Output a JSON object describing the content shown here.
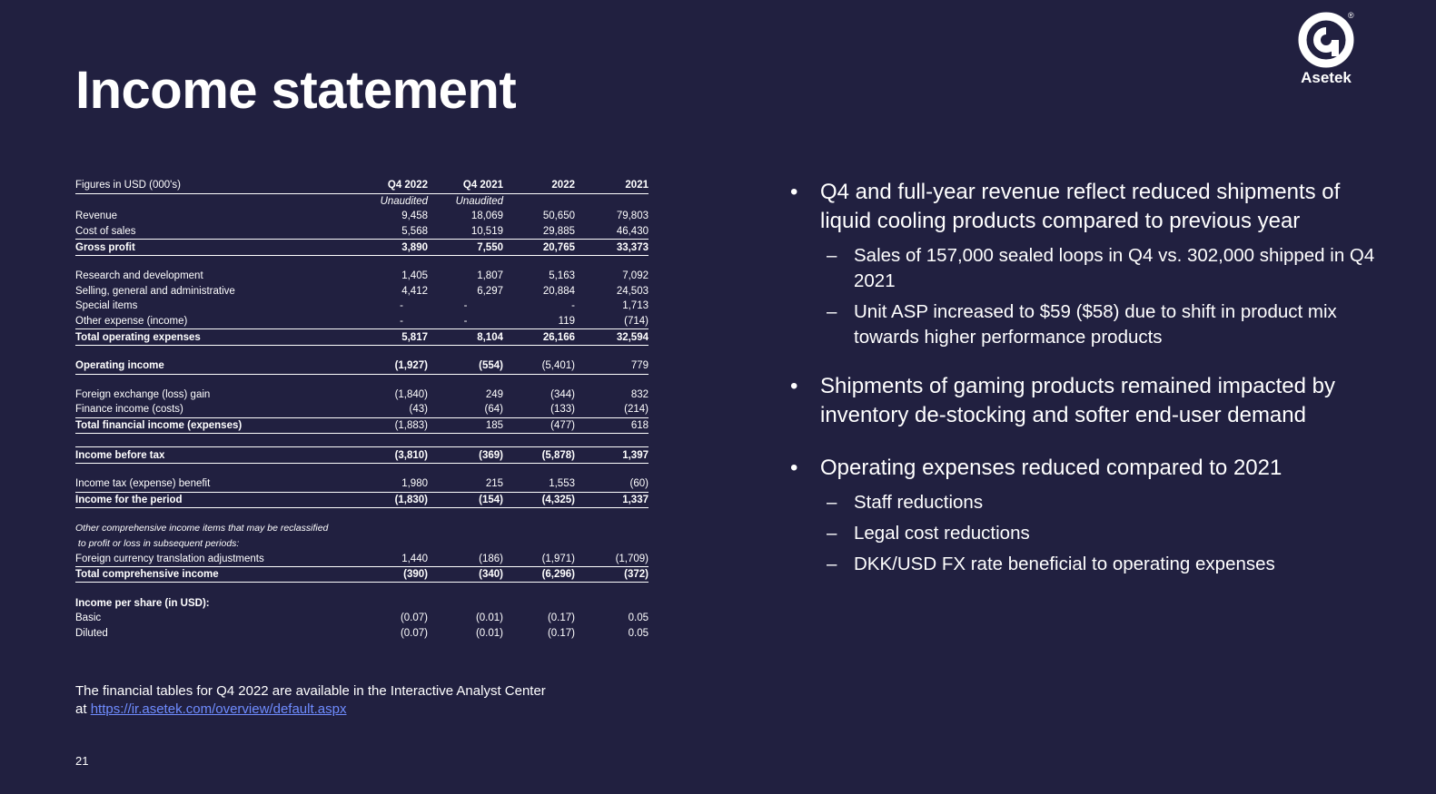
{
  "title": "Income statement",
  "logo": {
    "wordmark": "Asetek",
    "registered": "®"
  },
  "table": {
    "header": {
      "label": "Figures in USD (000's)",
      "cols": [
        "Q4 2022",
        "Q4 2021",
        "2022",
        "2021"
      ]
    },
    "subheader": [
      "Unaudited",
      "Unaudited"
    ],
    "rows": {
      "revenue": [
        "Revenue",
        "9,458",
        "18,069",
        "50,650",
        "79,803"
      ],
      "cost_of_sales": [
        "Cost of sales",
        "5,568",
        "10,519",
        "29,885",
        "46,430"
      ],
      "gross_profit": [
        "Gross profit",
        "3,890",
        "7,550",
        "20,765",
        "33,373"
      ],
      "rnd": [
        "Research and development",
        "1,405",
        "1,807",
        "5,163",
        "7,092"
      ],
      "sga": [
        "Selling, general and administrative",
        "4,412",
        "6,297",
        "20,884",
        "24,503"
      ],
      "special": [
        "Special items",
        "-",
        "-",
        "-",
        "1,713"
      ],
      "other_exp": [
        "Other expense (income)",
        "-",
        "-",
        "119",
        "(714)"
      ],
      "total_opex": [
        "Total operating expenses",
        "5,817",
        "8,104",
        "26,166",
        "32,594"
      ],
      "op_income": [
        "Operating income",
        "(1,927)",
        "(554)",
        "(5,401)",
        "779"
      ],
      "fx": [
        "Foreign exchange (loss) gain",
        "(1,840)",
        "249",
        "(344)",
        "832"
      ],
      "finance": [
        "Finance income (costs)",
        "(43)",
        "(64)",
        "(133)",
        "(214)"
      ],
      "total_fin": [
        "Total financial income (expenses)",
        "(1,883)",
        "185",
        "(477)",
        "618"
      ],
      "pre_tax": [
        "Income before tax",
        "(3,810)",
        "(369)",
        "(5,878)",
        "1,397"
      ],
      "tax": [
        "Income tax (expense) benefit",
        "1,980",
        "215",
        "1,553",
        "(60)"
      ],
      "period": [
        "Income for the period",
        "(1,830)",
        "(154)",
        "(4,325)",
        "1,337"
      ],
      "oci_note1": "Other comprehensive income items that may be reclassified",
      "oci_note2": " to profit or loss in subsequent periods:",
      "fx_translation": [
        "Foreign currency translation adjustments",
        "1,440",
        "(186)",
        "(1,971)",
        "(1,709)"
      ],
      "total_comp": [
        "Total comprehensive income",
        "(390)",
        "(340)",
        "(6,296)",
        "(372)"
      ],
      "eps_head": "Income per share (in USD):",
      "basic": [
        "Basic",
        "(0.07)",
        "(0.01)",
        "(0.17)",
        "0.05"
      ],
      "diluted": [
        "Diluted",
        "(0.07)",
        "(0.01)",
        "(0.17)",
        "0.05"
      ]
    }
  },
  "bullets": [
    {
      "text": "Q4 and full-year revenue reflect reduced shipments of liquid cooling products compared to previous year",
      "subs": [
        "Sales of 157,000 sealed loops in Q4 vs. 302,000 shipped in Q4 2021",
        "Unit ASP increased to $59 ($58) due to shift in product mix towards higher performance products"
      ]
    },
    {
      "text": "Shipments of gaming products remained impacted by inventory de-stocking and softer end-user demand",
      "subs": []
    },
    {
      "text": "Operating expenses reduced compared to 2021",
      "subs": [
        "Staff reductions",
        "Legal cost reductions",
        "DKK/USD FX rate beneficial to operating expenses"
      ]
    }
  ],
  "bullet_glyph": "•",
  "dash_glyph": "–",
  "footer": {
    "text1": "The financial tables for Q4 2022 are available in the Interactive Analyst Center",
    "text2": "at ",
    "link": "https://ir.asetek.com/overview/default.aspx"
  },
  "page_number": "21"
}
